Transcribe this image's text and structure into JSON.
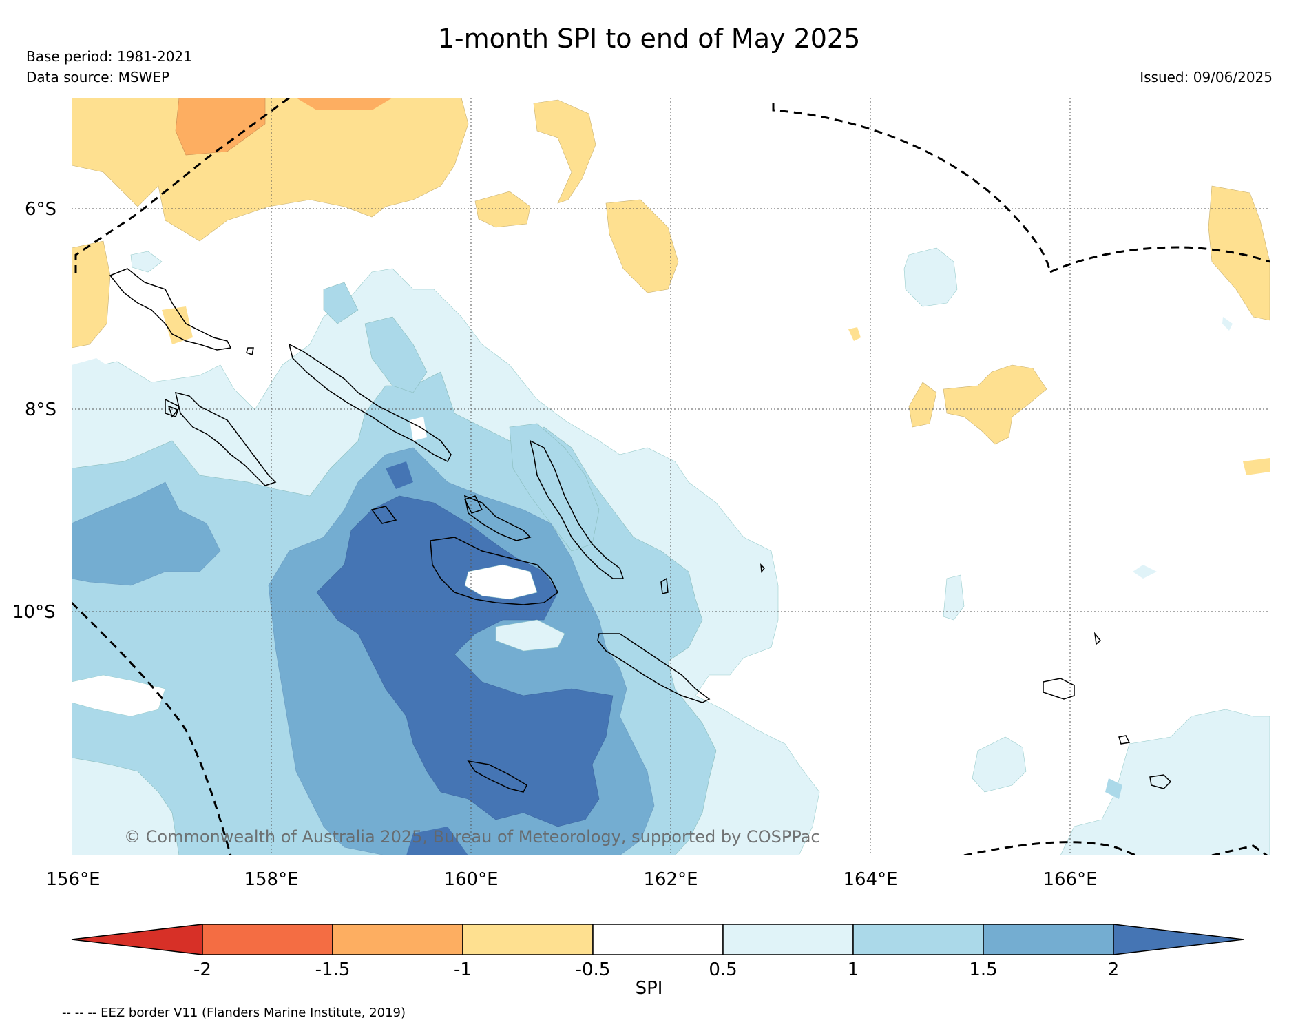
{
  "header": {
    "title": "1-month SPI to end of May 2025",
    "base_period": "Base period: 1981-2021",
    "data_source": "Data source: MSWEP",
    "issued": "Issued: 09/06/2025"
  },
  "map": {
    "region": "Solomon Islands",
    "lat_labels": [
      "6°S",
      "8°S",
      "10°S"
    ],
    "lon_labels": [
      "156°E",
      "158°E",
      "160°E",
      "162°E",
      "164°E",
      "166°E"
    ],
    "copyright": "© Commonwealth of Australia 2025, Bureau of Meteorology, supported by COSPPac",
    "background_color": "#ffffff",
    "coastline_color": "#000000",
    "eez_border_style": "dashed"
  },
  "legend": {
    "ticks": [
      "-2",
      "-1.5",
      "-1",
      "-0.5",
      "0.5",
      "1",
      "1.5",
      "2"
    ],
    "label": "SPI",
    "colors": {
      "below_-2": "#d73027",
      "-2_to_-1.5": "#f46d43",
      "-1.5_to_-1": "#fdae61",
      "-1_to_-0.5": "#fee090",
      "-0.5_to_0.5": "#ffffff",
      "0.5_to_1": "#e0f3f8",
      "1_to_1.5": "#abd9e9",
      "1.5_to_2": "#74add1",
      "above_2": "#4575b4"
    }
  },
  "footer": {
    "eez_note": "-- -- -- EEZ border V11 (Flanders Marine Institute, 2019)"
  }
}
